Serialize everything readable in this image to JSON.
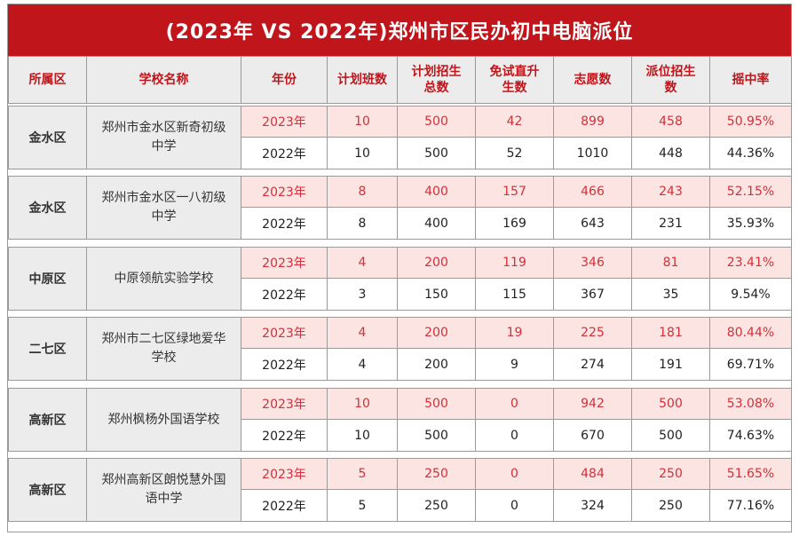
{
  "title": "(2023年 VS 2022年)郑州市区民办初中电脑派位",
  "headers": [
    "所属区",
    "学校名称",
    "年份",
    "计划班数",
    "计划招生总数",
    "免试直升生数",
    "志愿数",
    "派位招生数",
    "摇中率"
  ],
  "groups": [
    {
      "district": "金水区",
      "school": "郑州市金水区新奇初级中学",
      "rows": [
        {
          "year": "2023年",
          "classes": "10",
          "plan": "500",
          "direct": "42",
          "applications": "899",
          "allocated": "458",
          "rate": "50.95%"
        },
        {
          "year": "2022年",
          "classes": "10",
          "plan": "500",
          "direct": "52",
          "applications": "1010",
          "allocated": "448",
          "rate": "44.36%"
        }
      ]
    },
    {
      "district": "金水区",
      "school": "郑州市金水区一八初级中学",
      "rows": [
        {
          "year": "2023年",
          "classes": "8",
          "plan": "400",
          "direct": "157",
          "applications": "466",
          "allocated": "243",
          "rate": "52.15%"
        },
        {
          "year": "2022年",
          "classes": "8",
          "plan": "400",
          "direct": "169",
          "applications": "643",
          "allocated": "231",
          "rate": "35.93%"
        }
      ]
    },
    {
      "district": "中原区",
      "school": "中原领航实验学校",
      "rows": [
        {
          "year": "2023年",
          "classes": "4",
          "plan": "200",
          "direct": "119",
          "applications": "346",
          "allocated": "81",
          "rate": "23.41%"
        },
        {
          "year": "2022年",
          "classes": "3",
          "plan": "150",
          "direct": "115",
          "applications": "367",
          "allocated": "35",
          "rate": "9.54%"
        }
      ]
    },
    {
      "district": "二七区",
      "school": "郑州市二七区绿地爱华学校",
      "rows": [
        {
          "year": "2023年",
          "classes": "4",
          "plan": "200",
          "direct": "19",
          "applications": "225",
          "allocated": "181",
          "rate": "80.44%"
        },
        {
          "year": "2022年",
          "classes": "4",
          "plan": "200",
          "direct": "9",
          "applications": "274",
          "allocated": "191",
          "rate": "69.71%"
        }
      ]
    },
    {
      "district": "高新区",
      "school": "郑州枫杨外国语学校",
      "rows": [
        {
          "year": "2023年",
          "classes": "10",
          "plan": "500",
          "direct": "0",
          "applications": "942",
          "allocated": "500",
          "rate": "53.08%"
        },
        {
          "year": "2022年",
          "classes": "10",
          "plan": "500",
          "direct": "0",
          "applications": "670",
          "allocated": "500",
          "rate": "74.63%"
        }
      ]
    },
    {
      "district": "高新区",
      "school": "郑州高新区朗悦慧外国语中学",
      "rows": [
        {
          "year": "2023年",
          "classes": "5",
          "plan": "250",
          "direct": "0",
          "applications": "484",
          "allocated": "250",
          "rate": "51.65%"
        },
        {
          "year": "2022年",
          "classes": "5",
          "plan": "250",
          "direct": "0",
          "applications": "324",
          "allocated": "250",
          "rate": "77.16%"
        }
      ]
    }
  ]
}
